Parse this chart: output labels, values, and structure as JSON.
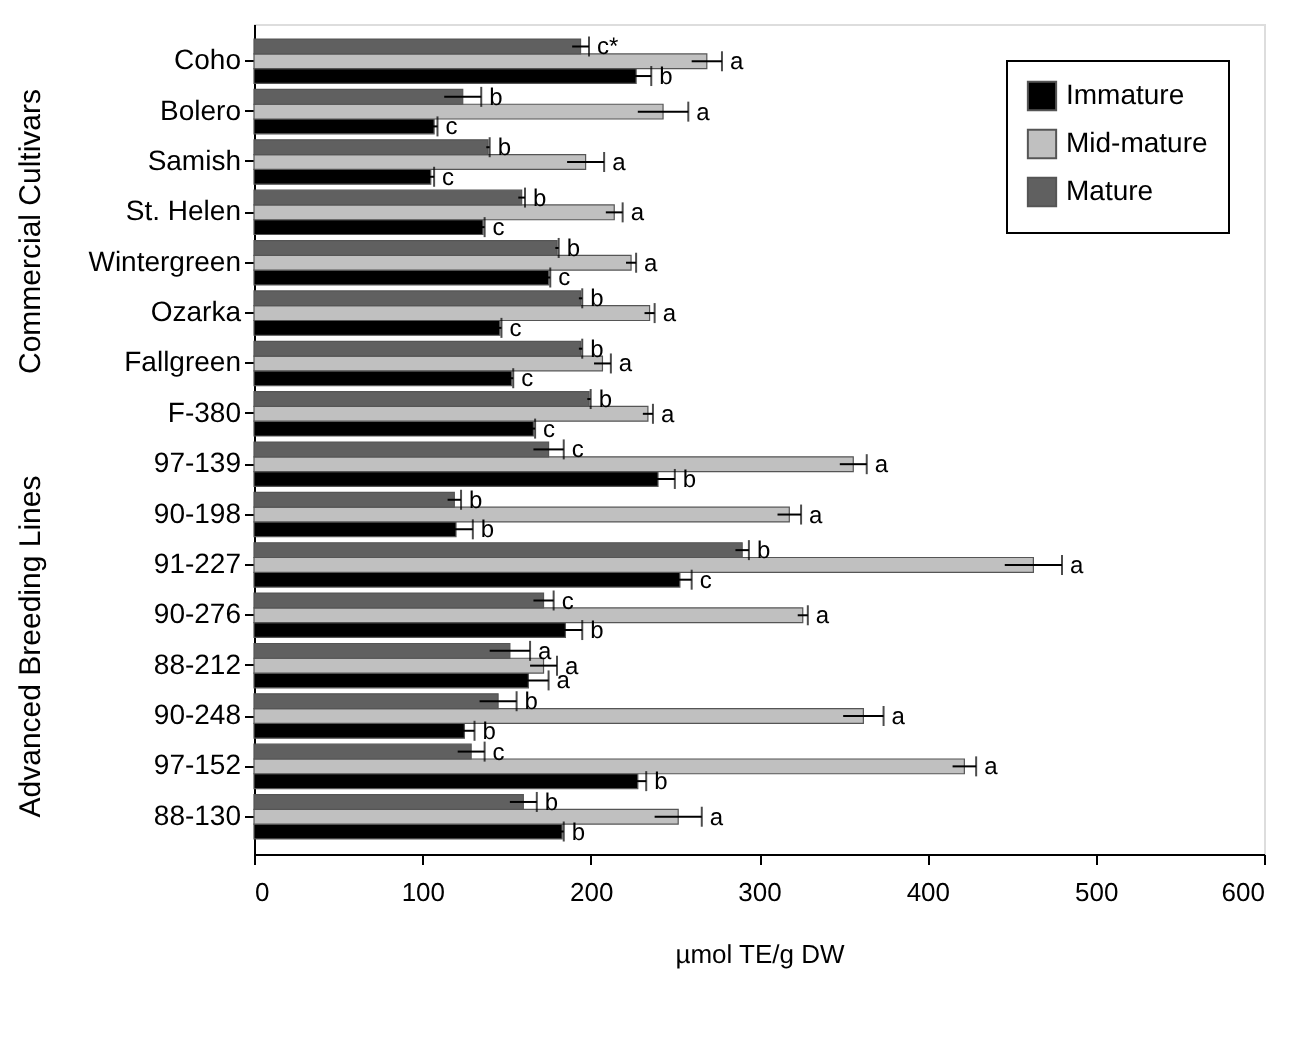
{
  "chart_data": {
    "type": "bar",
    "orientation": "horizontal",
    "xlabel": "µmol TE/g DW",
    "categories": [
      "Coho",
      "Bolero",
      "Samish",
      "St. Helen",
      "Wintergreen",
      "Ozarka",
      "Fallgreen",
      "F-380",
      "97-139",
      "90-198",
      "91-227",
      "90-276",
      "88-212",
      "90-248",
      "97-152",
      "88-130"
    ],
    "series": [
      {
        "name": "Immature",
        "color": "#000000",
        "values": [
          227,
          107,
          105,
          136,
          175,
          146,
          153,
          166,
          240,
          120,
          253,
          185,
          163,
          125,
          228,
          183
        ],
        "errors": [
          9,
          2,
          2,
          1,
          1,
          1,
          1,
          1,
          10,
          10,
          7,
          10,
          12,
          6,
          5,
          1
        ],
        "value_labels": [
          "b",
          "c",
          "c",
          "c",
          "c",
          "c",
          "c",
          "c",
          "b",
          "b",
          "c",
          "b",
          "a",
          "b",
          "b",
          "b"
        ]
      },
      {
        "name": "Mid-mature",
        "color": "#c0c0c0",
        "values": [
          269,
          243,
          197,
          214,
          224,
          235,
          207,
          234,
          356,
          318,
          463,
          326,
          172,
          362,
          422,
          252
        ],
        "errors": [
          9,
          15,
          11,
          5,
          3,
          3,
          5,
          3,
          8,
          7,
          17,
          3,
          8,
          12,
          7,
          14
        ],
        "value_labels": [
          "a",
          "a",
          "a",
          "a",
          "a",
          "a",
          "a",
          "a",
          "a",
          "a",
          "a",
          "a",
          "a",
          "a",
          "a",
          "a"
        ]
      },
      {
        "name": "Mature",
        "color": "#606060",
        "values": [
          194,
          124,
          139,
          159,
          180,
          194,
          194,
          199,
          175,
          119,
          290,
          172,
          152,
          145,
          129,
          160
        ],
        "errors": [
          5,
          11,
          1,
          2,
          1,
          1,
          1,
          1,
          9,
          4,
          4,
          6,
          12,
          11,
          8,
          8
        ],
        "value_labels": [
          "c*",
          "b",
          "b",
          "b",
          "b",
          "b",
          "b",
          "b",
          "c",
          "b",
          "b",
          "c",
          "a",
          "b",
          "c",
          "b"
        ]
      }
    ],
    "xlim": [
      0,
      600
    ],
    "xticks": [
      0,
      100,
      200,
      300,
      400,
      500,
      600
    ],
    "grid": false,
    "legend": "top right",
    "annotations": [
      "Commercial Cultivars",
      "Advanced Breeding Lines"
    ]
  }
}
